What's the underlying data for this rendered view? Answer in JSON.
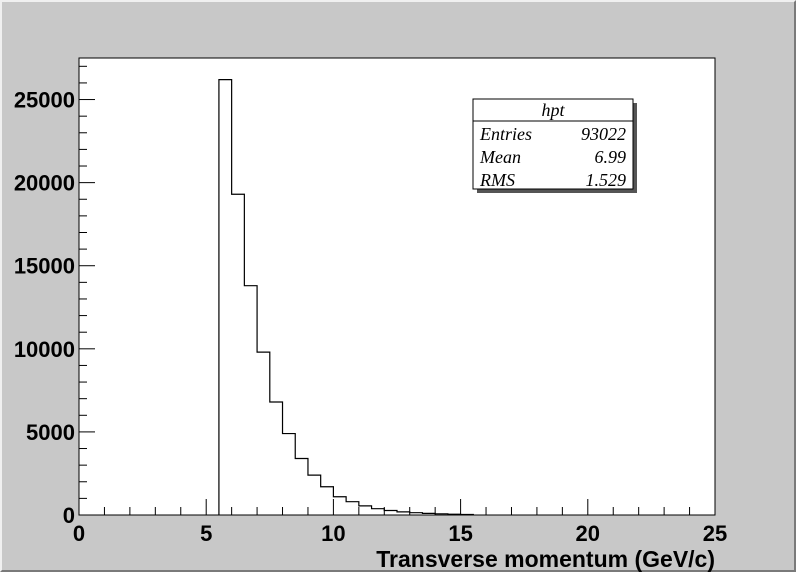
{
  "chart_data": {
    "type": "bar",
    "histogram_name": "hpt",
    "xlabel": "Transverse momentum (GeV/c)",
    "ylabel": "",
    "xlim": [
      0,
      25
    ],
    "ylim": [
      0,
      27500
    ],
    "x_ticks": [
      0,
      5,
      10,
      15,
      20,
      25
    ],
    "y_ticks": [
      0,
      5000,
      10000,
      15000,
      20000,
      25000
    ],
    "grid": false,
    "bins": {
      "edges": [
        5.5,
        6.0,
        6.5,
        7.0,
        7.5,
        8.0,
        8.5,
        9.0,
        9.5,
        10.0,
        10.5,
        11.0,
        11.5,
        12.0,
        12.5,
        13.0,
        13.5,
        14.0,
        14.5,
        15.0,
        15.5
      ],
      "values": [
        26200,
        19300,
        13800,
        9800,
        6800,
        4900,
        3400,
        2400,
        1700,
        1100,
        800,
        550,
        380,
        270,
        190,
        140,
        100,
        70,
        50,
        30
      ]
    },
    "stats_box": {
      "title": "hpt",
      "rows": [
        {
          "label": "Entries",
          "value": "93022"
        },
        {
          "label": "Mean",
          "value": "6.99"
        },
        {
          "label": "RMS",
          "value": "1.529"
        }
      ]
    }
  }
}
